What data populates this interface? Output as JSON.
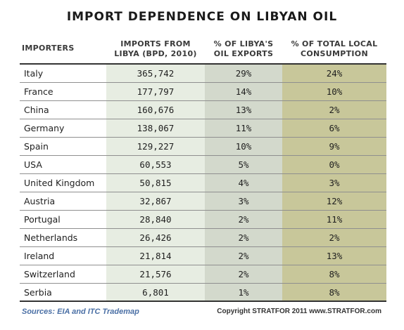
{
  "chart_data": {
    "type": "table",
    "title": "IMPORT DEPENDENCE ON LIBYAN OIL",
    "columns": [
      "IMPORTERS",
      "IMPORTS FROM LIBYA (BPD, 2010)",
      "% OF LIBYA'S OIL EXPORTS",
      "% OF TOTAL LOCAL CONSUMPTION"
    ],
    "header_lines": {
      "importers": "IMPORTERS",
      "imports_1": "IMPORTS FROM",
      "imports_2": "LIBYA (BPD, 2010)",
      "exports_1": "% OF LIBYA'S",
      "exports_2": "OIL EXPORTS",
      "local_1": "% OF TOTAL LOCAL",
      "local_2": "CONSUMPTION"
    },
    "rows": [
      {
        "country": "Italy",
        "imports": "365,742",
        "pct_exports": "29%",
        "pct_local": "24%"
      },
      {
        "country": "France",
        "imports": "177,797",
        "pct_exports": "14%",
        "pct_local": "10%"
      },
      {
        "country": "China",
        "imports": "160,676",
        "pct_exports": "13%",
        "pct_local": "2%"
      },
      {
        "country": "Germany",
        "imports": "138,067",
        "pct_exports": "11%",
        "pct_local": "6%"
      },
      {
        "country": "Spain",
        "imports": "129,227",
        "pct_exports": "10%",
        "pct_local": "9%"
      },
      {
        "country": "USA",
        "imports": "60,553",
        "pct_exports": "5%",
        "pct_local": "0%"
      },
      {
        "country": "United Kingdom",
        "imports": "50,815",
        "pct_exports": "4%",
        "pct_local": "3%"
      },
      {
        "country": "Austria",
        "imports": "32,867",
        "pct_exports": "3%",
        "pct_local": "12%"
      },
      {
        "country": "Portugal",
        "imports": "28,840",
        "pct_exports": "2%",
        "pct_local": "11%"
      },
      {
        "country": "Netherlands",
        "imports": "26,426",
        "pct_exports": "2%",
        "pct_local": "2%"
      },
      {
        "country": "Ireland",
        "imports": "21,814",
        "pct_exports": "2%",
        "pct_local": "13%"
      },
      {
        "country": "Switzerland",
        "imports": "21,576",
        "pct_exports": "2%",
        "pct_local": "8%"
      },
      {
        "country": "Serbia",
        "imports": "6,801",
        "pct_exports": "1%",
        "pct_local": "8%"
      }
    ],
    "column_colors": {
      "imports": "#e7ede2",
      "pct_exports": "#d3d9cc",
      "pct_local": "#c8c79a"
    }
  },
  "footer": {
    "sources": "Sources: EIA and ITC Trademap",
    "copyright": "Copyright STRATFOR 2011   www.STRATFOR.com"
  }
}
